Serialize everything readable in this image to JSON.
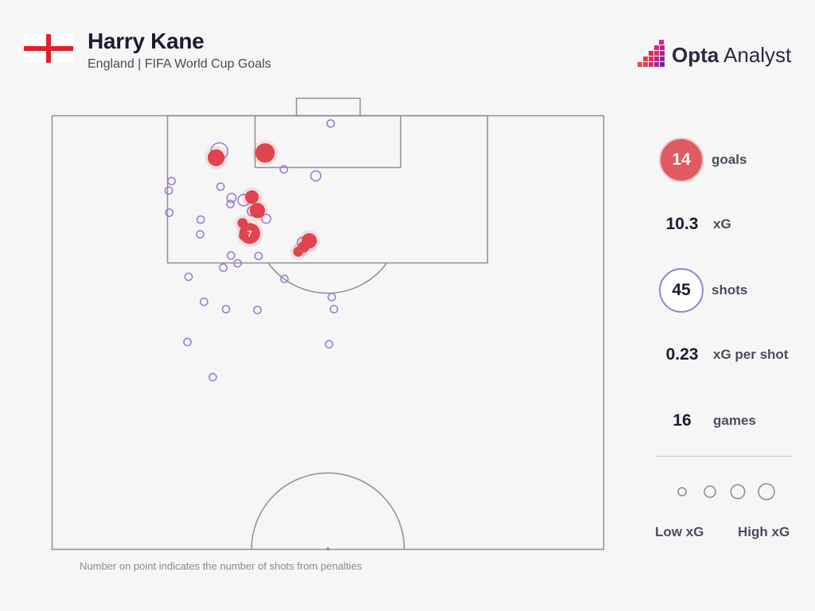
{
  "header": {
    "player": "Harry Kane",
    "subtitle": "England | FIFA World Cup Goals"
  },
  "brand": {
    "name_bold": "Opta",
    "name_rest": " Analyst"
  },
  "stats": {
    "goals": {
      "value": "14",
      "label": "goals"
    },
    "xg": {
      "value": "10.3",
      "label": "xG"
    },
    "shots": {
      "value": "45",
      "label": "shots"
    },
    "xg_per_shot": {
      "value": "0.23",
      "label": "xG per shot"
    },
    "games": {
      "value": "16",
      "label": "games"
    }
  },
  "legend": {
    "low": "Low xG",
    "high": "High xG"
  },
  "footnote": "Number on point indicates the number of shots from penalties",
  "colors": {
    "goal": "#e0444e",
    "shot": "#9b7fd4",
    "pitch_line": "#8f8f95",
    "background": "#f6f6f6"
  },
  "chart_data": {
    "type": "scatter",
    "title": "Harry Kane",
    "subtitle": "England | FIFA World Cup Goals",
    "note": "Number on point indicates the number of shots from penalties",
    "series": [
      {
        "name": "goals",
        "points": [
          {
            "x": 0.297,
            "y": 0.904,
            "xg": 0.45
          },
          {
            "x": 0.386,
            "y": 0.915,
            "xg": 0.65
          },
          {
            "x": 0.362,
            "y": 0.813,
            "xg": 0.25
          },
          {
            "x": 0.372,
            "y": 0.782,
            "xg": 0.35
          },
          {
            "x": 0.345,
            "y": 0.753,
            "xg": 0.1
          },
          {
            "x": 0.358,
            "y": 0.729,
            "xg": 0.78,
            "penalties": 7
          },
          {
            "x": 0.466,
            "y": 0.712,
            "xg": 0.35
          },
          {
            "x": 0.456,
            "y": 0.698,
            "xg": 0.15
          },
          {
            "x": 0.446,
            "y": 0.687,
            "xg": 0.1
          }
        ]
      },
      {
        "name": "shots",
        "points": [
          {
            "x": 0.303,
            "y": 0.919,
            "xg": 0.45
          },
          {
            "x": 0.505,
            "y": 0.983,
            "xg": 0.03
          },
          {
            "x": 0.42,
            "y": 0.877,
            "xg": 0.03
          },
          {
            "x": 0.478,
            "y": 0.862,
            "xg": 0.1
          },
          {
            "x": 0.216,
            "y": 0.85,
            "xg": 0.03
          },
          {
            "x": 0.211,
            "y": 0.828,
            "xg": 0.03
          },
          {
            "x": 0.212,
            "y": 0.777,
            "xg": 0.03
          },
          {
            "x": 0.305,
            "y": 0.837,
            "xg": 0.03
          },
          {
            "x": 0.325,
            "y": 0.811,
            "xg": 0.07
          },
          {
            "x": 0.347,
            "y": 0.806,
            "xg": 0.15
          },
          {
            "x": 0.323,
            "y": 0.797,
            "xg": 0.03
          },
          {
            "x": 0.362,
            "y": 0.78,
            "xg": 0.07
          },
          {
            "x": 0.388,
            "y": 0.763,
            "xg": 0.07
          },
          {
            "x": 0.269,
            "y": 0.761,
            "xg": 0.03
          },
          {
            "x": 0.268,
            "y": 0.727,
            "xg": 0.03
          },
          {
            "x": 0.346,
            "y": 0.723,
            "xg": 0.03
          },
          {
            "x": 0.454,
            "y": 0.708,
            "xg": 0.12
          },
          {
            "x": 0.324,
            "y": 0.678,
            "xg": 0.03
          },
          {
            "x": 0.374,
            "y": 0.677,
            "xg": 0.03
          },
          {
            "x": 0.336,
            "y": 0.66,
            "xg": 0.03
          },
          {
            "x": 0.31,
            "y": 0.65,
            "xg": 0.03
          },
          {
            "x": 0.247,
            "y": 0.629,
            "xg": 0.03
          },
          {
            "x": 0.421,
            "y": 0.624,
            "xg": 0.03
          },
          {
            "x": 0.275,
            "y": 0.571,
            "xg": 0.03
          },
          {
            "x": 0.315,
            "y": 0.554,
            "xg": 0.03
          },
          {
            "x": 0.372,
            "y": 0.552,
            "xg": 0.03
          },
          {
            "x": 0.507,
            "y": 0.582,
            "xg": 0.03
          },
          {
            "x": 0.511,
            "y": 0.554,
            "xg": 0.03
          },
          {
            "x": 0.245,
            "y": 0.478,
            "xg": 0.03
          },
          {
            "x": 0.502,
            "y": 0.473,
            "xg": 0.03
          },
          {
            "x": 0.291,
            "y": 0.397,
            "xg": 0.03
          }
        ]
      }
    ],
    "legend_sizes": [
      0.05,
      0.2,
      0.4,
      0.6
    ]
  }
}
